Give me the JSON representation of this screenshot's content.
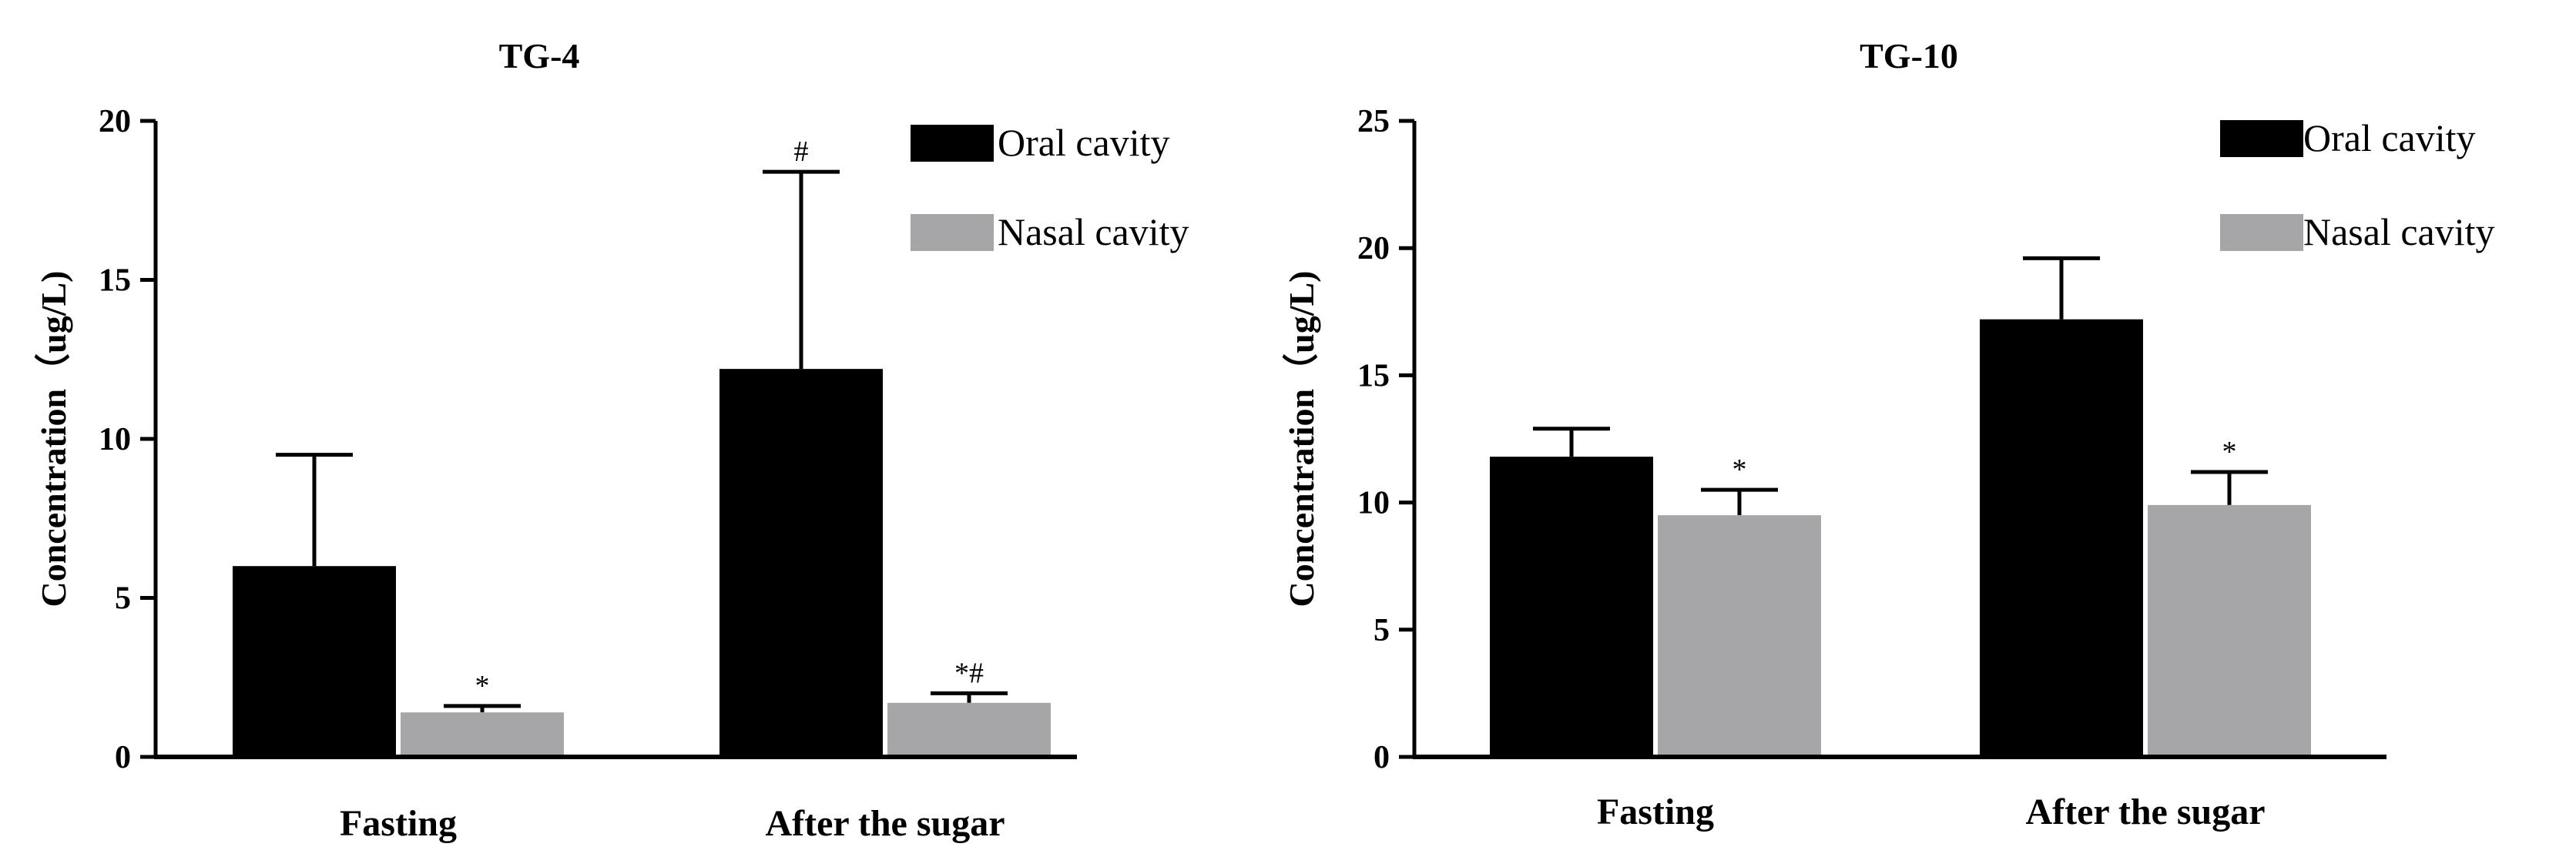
{
  "chart_data": [
    {
      "type": "bar",
      "title": "TG-4",
      "categories": [
        "Fasting",
        "After the sugar"
      ],
      "ylabel": "Concentration（ug/L)",
      "xlabel": "",
      "ylim": [
        0,
        20
      ],
      "yticks": [
        0,
        5,
        10,
        15,
        20
      ],
      "legend_position": "top-right",
      "grid": false,
      "series": [
        {
          "name": "Oral cavity",
          "color": "#000000",
          "values": [
            6.0,
            12.2
          ],
          "error": [
            3.5,
            6.2
          ],
          "annotations": [
            "",
            "#"
          ]
        },
        {
          "name": "Nasal cavity",
          "color": "#a6a6a8",
          "values": [
            1.4,
            1.7
          ],
          "error": [
            0.2,
            0.3
          ],
          "annotations": [
            "*",
            "*#"
          ]
        }
      ]
    },
    {
      "type": "bar",
      "title": "TG-10",
      "categories": [
        "Fasting",
        "After the sugar"
      ],
      "ylabel": "Concentration（ug/L)",
      "xlabel": "",
      "ylim": [
        0,
        25
      ],
      "yticks": [
        0,
        5,
        10,
        15,
        20,
        25
      ],
      "legend_position": "top-right",
      "grid": false,
      "series": [
        {
          "name": "Oral cavity",
          "color": "#000000",
          "values": [
            11.8,
            17.2
          ],
          "error": [
            1.1,
            2.4
          ],
          "annotations": [
            "",
            ""
          ]
        },
        {
          "name": "Nasal cavity",
          "color": "#a6a6a8",
          "values": [
            9.5,
            9.9
          ],
          "error": [
            1.0,
            1.3
          ],
          "annotations": [
            "*",
            "*"
          ]
        }
      ]
    }
  ]
}
